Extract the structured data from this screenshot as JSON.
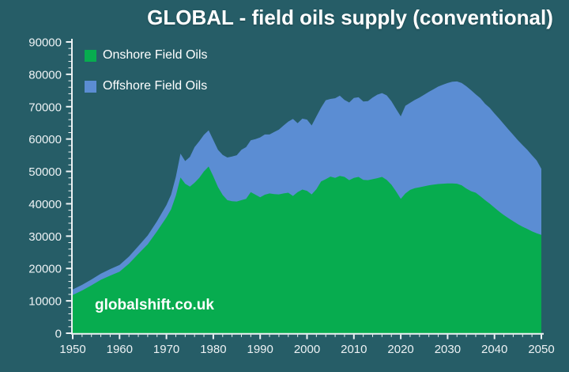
{
  "title": "GLOBAL - field oils supply (conventional)",
  "watermark": "globalshift.co.uk",
  "colors": {
    "background": "#265D67",
    "onshore": "#07AC4F",
    "offshore": "#5B8DD3",
    "axis": "#EDF2F4",
    "tick_label": "#EDF2F4",
    "title_text": "#FFFFFF",
    "legend_text": "#FFFFFF",
    "watermark_text": "#FFFFFF"
  },
  "legend": {
    "position": "top-left",
    "items": [
      {
        "label": "Onshore Field Oils",
        "swatch": "onshore-swatch-green"
      },
      {
        "label": "Offshore Field Oils",
        "swatch": "offshore-swatch-blue"
      }
    ]
  },
  "chart_data": {
    "type": "area",
    "stacked": true,
    "title": "GLOBAL - field oils supply (conventional)",
    "xlabel": "",
    "ylabel": "",
    "grid": false,
    "legend_position": "top-left",
    "xlim": [
      1950,
      2050
    ],
    "ylim": [
      0,
      90000
    ],
    "x_tick_labels": [
      "1950",
      "1960",
      "1970",
      "1980",
      "1990",
      "2000",
      "2010",
      "2020",
      "2030",
      "2040",
      "2050"
    ],
    "y_tick_labels": [
      "0",
      "10000",
      "20000",
      "30000",
      "40000",
      "50000",
      "60000",
      "70000",
      "80000",
      "90000"
    ],
    "x_minor_step": 2,
    "y_minor_step": 2000,
    "x": [
      1950,
      1952,
      1954,
      1956,
      1958,
      1960,
      1962,
      1964,
      1966,
      1968,
      1970,
      1971,
      1972,
      1973,
      1974,
      1975,
      1976,
      1977,
      1978,
      1979,
      1980,
      1981,
      1982,
      1983,
      1984,
      1985,
      1986,
      1987,
      1988,
      1989,
      1990,
      1991,
      1992,
      1993,
      1994,
      1995,
      1996,
      1997,
      1998,
      1999,
      2000,
      2001,
      2002,
      2003,
      2004,
      2005,
      2006,
      2007,
      2008,
      2009,
      2010,
      2011,
      2012,
      2013,
      2014,
      2015,
      2016,
      2017,
      2018,
      2019,
      2020,
      2021,
      2022,
      2023,
      2024,
      2025,
      2026,
      2027,
      2028,
      2029,
      2030,
      2031,
      2032,
      2033,
      2034,
      2035,
      2036,
      2037,
      2038,
      2039,
      2040,
      2041,
      2042,
      2043,
      2044,
      2045,
      2046,
      2047,
      2048,
      2049,
      2050
    ],
    "series": [
      {
        "name": "Onshore Field Oils",
        "color": "#07AC4F",
        "values": [
          11800,
          13200,
          14800,
          16500,
          17800,
          19000,
          21500,
          24500,
          27500,
          31500,
          35800,
          38300,
          42500,
          48100,
          46200,
          45300,
          46500,
          48000,
          50000,
          51500,
          48500,
          45200,
          42700,
          41100,
          40800,
          40700,
          41100,
          41500,
          43600,
          42800,
          42000,
          42800,
          43200,
          43000,
          42900,
          43200,
          43400,
          42400,
          43600,
          44400,
          44000,
          42900,
          44500,
          46900,
          47600,
          48400,
          48000,
          48600,
          48300,
          47300,
          48000,
          48300,
          47400,
          47300,
          47600,
          47900,
          48300,
          47400,
          45900,
          43800,
          41500,
          43200,
          44300,
          44800,
          45100,
          45400,
          45700,
          45900,
          46100,
          46200,
          46300,
          46300,
          46200,
          45700,
          44700,
          43900,
          43400,
          42300,
          41100,
          40000,
          38800,
          37600,
          36500,
          35500,
          34600,
          33700,
          32900,
          32200,
          31500,
          30900,
          30400
        ]
      },
      {
        "name": "Offshore Field Oils",
        "color": "#5B8DD3",
        "values": [
          1700,
          1750,
          1800,
          1900,
          2000,
          2100,
          2200,
          2400,
          2700,
          3100,
          3800,
          4500,
          5800,
          7400,
          7000,
          9200,
          11000,
          11300,
          11300,
          11200,
          11200,
          11500,
          12400,
          13200,
          13800,
          14300,
          15600,
          16000,
          16000,
          17200,
          18500,
          18600,
          18200,
          19200,
          20000,
          21000,
          22000,
          23800,
          21300,
          21900,
          22000,
          21300,
          22500,
          22800,
          24400,
          24000,
          24600,
          24800,
          23800,
          24000,
          24700,
          24600,
          24200,
          24400,
          25200,
          25800,
          25900,
          26100,
          25800,
          25500,
          25500,
          27100,
          26900,
          27300,
          27700,
          28300,
          28900,
          29500,
          30100,
          30600,
          31000,
          31400,
          31600,
          31600,
          31600,
          31200,
          30400,
          30300,
          29800,
          29600,
          29100,
          28700,
          28100,
          27400,
          26700,
          25900,
          25200,
          24500,
          23500,
          22500,
          20400
        ]
      }
    ]
  }
}
